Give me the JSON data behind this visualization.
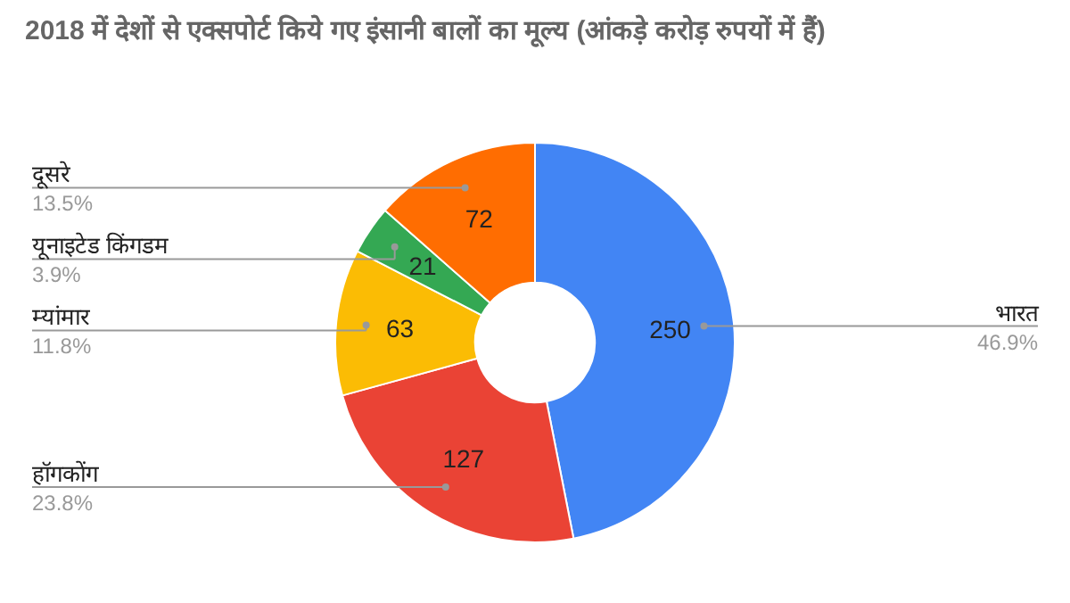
{
  "chart_data": {
    "type": "donut",
    "title": "2018 में देशों से एक्सपोर्ट किये गए इंसानी बालों का मूल्य (आंकड़े करोड़ रुपयों में हैं)",
    "categories": [
      "भारत",
      "हॉगकोंग",
      "म्यांमार",
      "यूनाइटेड किंगडम",
      "दूसरे"
    ],
    "values": [
      250,
      127,
      63,
      21,
      72
    ],
    "colors": [
      "#4285f4",
      "#ea4335",
      "#fbbc04",
      "#34a853",
      "#ff6d01"
    ],
    "data_labels": true,
    "annotations": [
      {
        "text": "46.9%",
        "x": "भारत"
      },
      {
        "text": "23.8%",
        "x": "हॉगकोंग"
      },
      {
        "text": "11.8%",
        "x": "म्यांमार"
      },
      {
        "text": "3.9%",
        "x": "यूनाइटेड किंगडम"
      },
      {
        "text": "13.5%",
        "x": "दूसरे"
      }
    ]
  }
}
